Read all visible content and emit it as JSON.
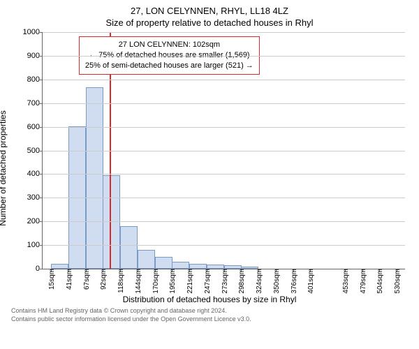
{
  "title_line1": "27, LON CELYNNEN, RHYL, LL18 4LZ",
  "title_line2": "Size of property relative to detached houses in Rhyl",
  "ylabel": "Number of detached properties",
  "xlabel": "Distribution of detached houses by size in Rhyl",
  "footer_line1": "Contains HM Land Registry data © Crown copyright and database right 2024.",
  "footer_line2": "Contains public sector information licensed under the Open Government Licence v3.0.",
  "chart": {
    "type": "histogram",
    "ylim": [
      0,
      1000
    ],
    "ytick_step": 100,
    "background_color": "#ffffff",
    "grid_color": "#cccccc",
    "axis_color": "#666666",
    "bar_fill": "#d0ddf0",
    "bar_stroke": "#7a9ac8",
    "reference_line_color": "#d82a2a",
    "callout_border": "#d82a2a",
    "reference_value_sqm": 102,
    "xtick_labels": [
      "15sqm",
      "41sqm",
      "67sqm",
      "92sqm",
      "118sqm",
      "144sqm",
      "170sqm",
      "195sqm",
      "221sqm",
      "247sqm",
      "273sqm",
      "298sqm",
      "324sqm",
      "350sqm",
      "376sqm",
      "401sqm",
      "453sqm",
      "479sqm",
      "504sqm",
      "530sqm"
    ],
    "bars": [
      {
        "x": 15,
        "count": 20
      },
      {
        "x": 41,
        "count": 600
      },
      {
        "x": 67,
        "count": 765
      },
      {
        "x": 92,
        "count": 395
      },
      {
        "x": 118,
        "count": 180
      },
      {
        "x": 144,
        "count": 80
      },
      {
        "x": 170,
        "count": 50
      },
      {
        "x": 195,
        "count": 30
      },
      {
        "x": 221,
        "count": 20
      },
      {
        "x": 247,
        "count": 18
      },
      {
        "x": 273,
        "count": 15
      },
      {
        "x": 298,
        "count": 8
      }
    ],
    "bar_width_sqm": 26,
    "xrange_sqm": [
      2,
      543
    ],
    "callout": {
      "line1": "27 LON CELYNNEN: 102sqm",
      "line2": "← 75% of detached houses are smaller (1,569)",
      "line3": "25% of semi-detached houses are larger (521) →"
    }
  }
}
